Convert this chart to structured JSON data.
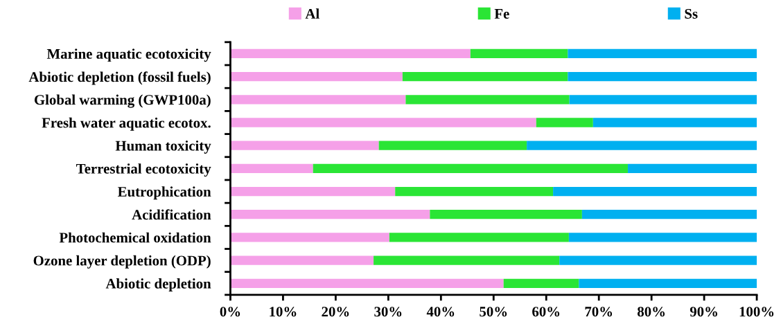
{
  "chart_data": {
    "type": "bar",
    "orientation": "horizontal",
    "stacked": true,
    "categories": [
      "Marine aquatic ecotoxicity",
      "Abiotic depletion (fossil fuels)",
      "Global warming (GWP100a)",
      "Fresh water aquatic ecotox.",
      "Human toxicity",
      "Terrestrial ecotoxicity",
      "Eutrophication",
      "Acidification",
      "Photochemical oxidation",
      "Ozone layer depletion (ODP)",
      "Abiotic depletion"
    ],
    "series": [
      {
        "name": "Al",
        "color": "#f5a0e8",
        "values": [
          45.6,
          32.7,
          33.3,
          58.1,
          28.2,
          15.7,
          31.3,
          37.9,
          30.2,
          27.2,
          51.9
        ]
      },
      {
        "name": "Fe",
        "color": "#2ae535",
        "values": [
          18.5,
          31.4,
          31.1,
          10.8,
          28.1,
          59.8,
          30.0,
          28.9,
          34.1,
          35.3,
          14.3
        ]
      },
      {
        "name": "Ss",
        "color": "#00b0f0",
        "values": [
          35.9,
          35.9,
          35.6,
          31.1,
          43.7,
          24.5,
          38.7,
          33.2,
          35.7,
          37.5,
          33.8
        ]
      }
    ],
    "xlim": [
      0,
      100
    ],
    "xticks": [
      {
        "value": 0,
        "label": "0%"
      },
      {
        "value": 10,
        "label": "10%"
      },
      {
        "value": 20,
        "label": "20%"
      },
      {
        "value": 30,
        "label": "30%"
      },
      {
        "value": 40,
        "label": "40%"
      },
      {
        "value": 50,
        "label": "50%"
      },
      {
        "value": 60,
        "label": "60%"
      },
      {
        "value": 70,
        "label": "70%"
      },
      {
        "value": 80,
        "label": "80%"
      },
      {
        "value": 90,
        "label": "90%"
      },
      {
        "value": 100,
        "label": "100%"
      }
    ],
    "legend": "top",
    "grid": false
  }
}
